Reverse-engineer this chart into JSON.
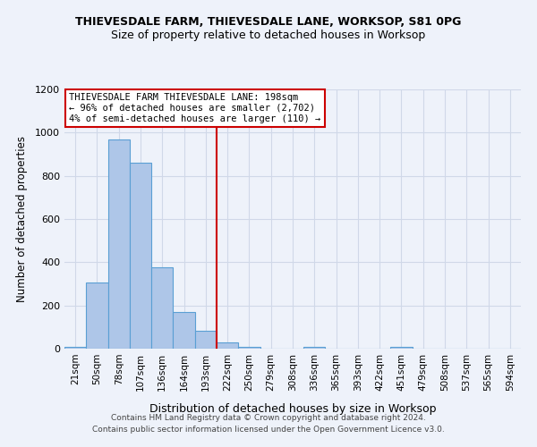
{
  "title": "THIEVESDALE FARM, THIEVESDALE LANE, WORKSOP, S81 0PG",
  "subtitle": "Size of property relative to detached houses in Worksop",
  "xlabel": "Distribution of detached houses by size in Worksop",
  "ylabel": "Number of detached properties",
  "footer_line1": "Contains HM Land Registry data © Crown copyright and database right 2024.",
  "footer_line2": "Contains public sector information licensed under the Open Government Licence v3.0.",
  "bar_labels": [
    "21sqm",
    "50sqm",
    "78sqm",
    "107sqm",
    "136sqm",
    "164sqm",
    "193sqm",
    "222sqm",
    "250sqm",
    "279sqm",
    "308sqm",
    "336sqm",
    "365sqm",
    "393sqm",
    "422sqm",
    "451sqm",
    "479sqm",
    "508sqm",
    "537sqm",
    "565sqm",
    "594sqm"
  ],
  "bar_values": [
    10,
    308,
    970,
    860,
    375,
    170,
    82,
    28,
    8,
    0,
    0,
    10,
    0,
    0,
    0,
    10,
    0,
    0,
    0,
    0,
    0
  ],
  "bar_color": "#aec6e8",
  "bar_edge_color": "#5a9fd4",
  "grid_color": "#d0d8e8",
  "background_color": "#eef2fa",
  "vline_x": 6.5,
  "vline_color": "#cc0000",
  "annotation_text": "THIEVESDALE FARM THIEVESDALE LANE: 198sqm\n← 96% of detached houses are smaller (2,702)\n4% of semi-detached houses are larger (110) →",
  "annotation_box_color": "white",
  "annotation_box_edge": "#cc0000",
  "ylim": [
    0,
    1200
  ],
  "yticks": [
    0,
    200,
    400,
    600,
    800,
    1000,
    1200
  ]
}
